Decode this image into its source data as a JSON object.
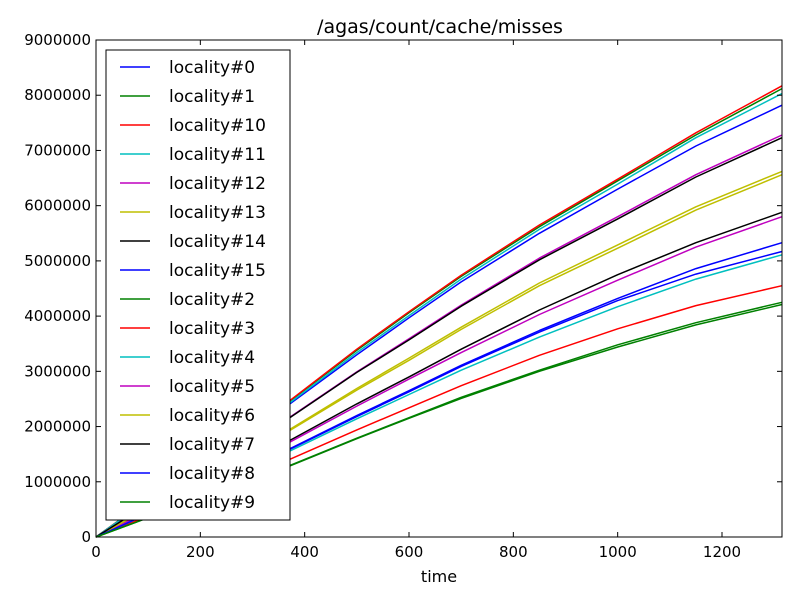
{
  "chart_data": {
    "type": "line",
    "title": "/agas/count/cache/misses",
    "xlabel": "time",
    "ylabel": "",
    "xlim": [
      0,
      1315
    ],
    "ylim": [
      0,
      9000000
    ],
    "x_ticks": [
      0,
      200,
      400,
      600,
      800,
      1000,
      1200
    ],
    "y_ticks": [
      0,
      1000000,
      2000000,
      3000000,
      4000000,
      5000000,
      6000000,
      7000000,
      8000000,
      9000000
    ],
    "x_tick_labels": [
      "0",
      "200",
      "400",
      "600",
      "800",
      "1000",
      "1200"
    ],
    "y_tick_labels": [
      "0",
      "1000000",
      "2000000",
      "3000000",
      "4000000",
      "5000000",
      "6000000",
      "7000000",
      "8000000",
      "9000000"
    ],
    "grid": false,
    "legend_position": "upper-left",
    "x": [
      0,
      100,
      200,
      300,
      370,
      500,
      600,
      700,
      850,
      1000,
      1150,
      1315
    ],
    "series": [
      {
        "name": "locality#0",
        "color": "#0000ff",
        "values": [
          0,
          650000,
          1300000,
          1900000,
          2400000,
          3300000,
          3970000,
          4620000,
          5500000,
          6300000,
          7080000,
          7820000
        ]
      },
      {
        "name": "locality#1",
        "color": "#008000",
        "values": [
          0,
          680000,
          1340000,
          1950000,
          2450000,
          3380000,
          4060000,
          4720000,
          5620000,
          6450000,
          7280000,
          8120000
        ]
      },
      {
        "name": "locality#10",
        "color": "#ff0000",
        "values": [
          0,
          680000,
          1350000,
          1960000,
          2460000,
          3400000,
          4080000,
          4740000,
          5650000,
          6480000,
          7320000,
          8170000
        ]
      },
      {
        "name": "locality#11",
        "color": "#00bfbf",
        "values": [
          0,
          670000,
          1320000,
          1930000,
          2420000,
          3340000,
          4010000,
          4670000,
          5570000,
          6390000,
          7230000,
          8030000
        ]
      },
      {
        "name": "locality#12",
        "color": "#bf00bf",
        "values": [
          0,
          590000,
          1170000,
          1720000,
          2160000,
          2990000,
          3590000,
          4200000,
          5050000,
          5800000,
          6560000,
          7280000
        ]
      },
      {
        "name": "locality#13",
        "color": "#bfbf00",
        "values": [
          0,
          520000,
          1030000,
          1520000,
          1920000,
          2660000,
          3200000,
          3760000,
          4550000,
          5230000,
          5920000,
          6560000
        ]
      },
      {
        "name": "locality#14",
        "color": "#000000",
        "values": [
          0,
          480000,
          940000,
          1380000,
          1740000,
          2410000,
          2900000,
          3400000,
          4110000,
          4750000,
          5330000,
          5880000
        ]
      },
      {
        "name": "locality#15",
        "color": "#0000ff",
        "values": [
          0,
          430000,
          860000,
          1260000,
          1590000,
          2200000,
          2650000,
          3110000,
          3740000,
          4320000,
          4860000,
          5330000
        ]
      },
      {
        "name": "locality#2",
        "color": "#008000",
        "values": [
          0,
          350000,
          700000,
          1020000,
          1290000,
          1790000,
          2160000,
          2530000,
          3020000,
          3480000,
          3880000,
          4250000
        ]
      },
      {
        "name": "locality#3",
        "color": "#ff0000",
        "values": [
          0,
          380000,
          760000,
          1110000,
          1400000,
          1940000,
          2340000,
          2740000,
          3290000,
          3770000,
          4190000,
          4550000
        ]
      },
      {
        "name": "locality#4",
        "color": "#00bfbf",
        "values": [
          0,
          420000,
          840000,
          1230000,
          1550000,
          2140000,
          2580000,
          3020000,
          3620000,
          4170000,
          4670000,
          5110000
        ]
      },
      {
        "name": "locality#5",
        "color": "#bf00bf",
        "values": [
          0,
          470000,
          920000,
          1360000,
          1710000,
          2370000,
          2860000,
          3340000,
          4030000,
          4650000,
          5250000,
          5800000
        ]
      },
      {
        "name": "locality#6",
        "color": "#bfbf00",
        "values": [
          0,
          520000,
          1040000,
          1530000,
          1940000,
          2690000,
          3240000,
          3800000,
          4600000,
          5290000,
          5980000,
          6620000
        ]
      },
      {
        "name": "locality#7",
        "color": "#000000",
        "values": [
          0,
          590000,
          1160000,
          1710000,
          2150000,
          2980000,
          3570000,
          4180000,
          5020000,
          5760000,
          6520000,
          7230000
        ]
      },
      {
        "name": "locality#8",
        "color": "#0000ff",
        "values": [
          0,
          420000,
          850000,
          1250000,
          1580000,
          2180000,
          2630000,
          3090000,
          3710000,
          4280000,
          4760000,
          5170000
        ]
      },
      {
        "name": "locality#9",
        "color": "#008000",
        "values": [
          0,
          350000,
          690000,
          1010000,
          1280000,
          1780000,
          2150000,
          2510000,
          3000000,
          3440000,
          3840000,
          4210000
        ]
      }
    ]
  }
}
